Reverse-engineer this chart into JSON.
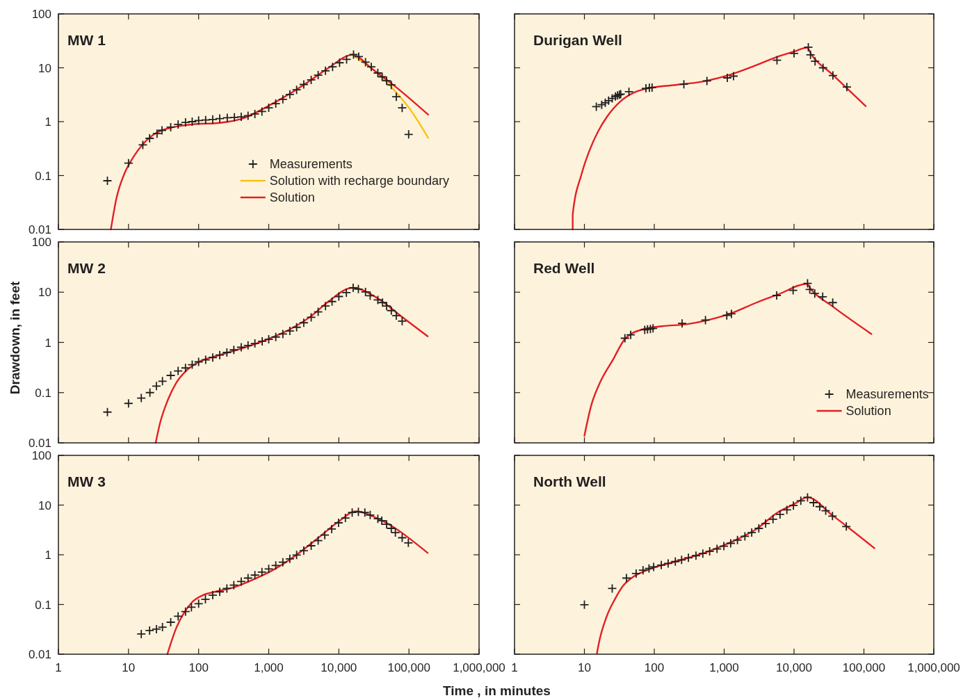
{
  "chart_data": [
    {
      "type": "scatter",
      "title": "MW 1",
      "xlim": [
        1,
        1000000
      ],
      "ylim": [
        0.01,
        100
      ],
      "log": "xy",
      "legend": "bottom right",
      "tick_labels": "y",
      "xticks": [
        {
          "value": 1,
          "label": null
        },
        {
          "value": 10,
          "label": null
        },
        {
          "value": 100,
          "label": null
        },
        {
          "value": 1000,
          "label": null
        },
        {
          "value": 10000,
          "label": null
        },
        {
          "value": 100000,
          "label": null
        },
        {
          "value": 1000000,
          "label": null
        }
      ],
      "yticks": [
        0.01,
        0.1,
        1,
        10,
        100
      ],
      "series": [
        {
          "name": "Measurements",
          "marker": "cross",
          "color": "#231f20",
          "x": [
            5,
            10,
            16,
            20,
            25.5,
            30,
            40,
            51,
            65,
            81,
            100,
            126,
            159,
            200,
            256,
            324,
            405,
            507,
            635,
            800,
            1000,
            1260,
            1590,
            2000,
            2500,
            3160,
            4030,
            5070,
            6450,
            8140,
            10240,
            12900,
            16200,
            19200,
            24000,
            29000,
            36000,
            41500,
            48000,
            56000,
            66000,
            80000,
            99000
          ],
          "values": [
            0.08,
            0.17,
            0.37,
            0.49,
            0.6,
            0.69,
            0.79,
            0.89,
            0.97,
            1.0,
            1.05,
            1.07,
            1.1,
            1.14,
            1.18,
            1.2,
            1.23,
            1.29,
            1.39,
            1.54,
            1.81,
            2.16,
            2.6,
            3.2,
            3.9,
            4.9,
            5.95,
            7.3,
            8.8,
            10.4,
            12.4,
            14.3,
            17.6,
            16.1,
            12.7,
            10.4,
            8.0,
            6.8,
            5.75,
            4.8,
            2.9,
            1.8,
            0.58
          ]
        },
        {
          "name": "Solution with recharge boundary",
          "type": "line",
          "color": "#fcc00d",
          "x": [
            15700,
            35000,
            61000,
            102000,
            188000
          ],
          "values": [
            17.4,
            8.0,
            3.9,
            1.75,
            0.5
          ]
        },
        {
          "name": "Solution",
          "type": "line",
          "color": "#e41e26",
          "x": [
            5.6,
            6.7,
            8.7,
            11.9,
            16,
            25.5,
            40,
            81,
            200,
            405,
            1000,
            2000,
            4000,
            7000,
            15700,
            30000,
            61000,
            188000
          ],
          "values": [
            0.01,
            0.037,
            0.107,
            0.227,
            0.38,
            0.63,
            0.77,
            0.89,
            0.95,
            1.12,
            1.97,
            3.3,
            5.95,
            9.8,
            17.4,
            9.5,
            4.7,
            1.35
          ]
        }
      ]
    },
    {
      "type": "scatter",
      "title": "Durigan Well",
      "xlim": [
        1,
        1000000
      ],
      "ylim": [
        0.01,
        100
      ],
      "log": "xy",
      "tick_labels": false,
      "xticks": [
        {
          "value": 1,
          "label": null
        },
        {
          "value": 10,
          "label": null
        },
        {
          "value": 100,
          "label": null
        },
        {
          "value": 1000,
          "label": null
        },
        {
          "value": 10000,
          "label": null
        },
        {
          "value": 100000,
          "label": null
        },
        {
          "value": 1000000,
          "label": null
        }
      ],
      "yticks": [
        {
          "value": 0.01,
          "label": null
        },
        {
          "value": 0.1,
          "label": null
        },
        {
          "value": 1,
          "label": null
        },
        {
          "value": 10,
          "label": null
        },
        {
          "value": 100,
          "label": null
        }
      ],
      "series": [
        {
          "marker": "cross",
          "color": "#231f20",
          "x": [
            14.8,
            17.7,
            19.9,
            22.2,
            25,
            27.8,
            29.8,
            31.7,
            33.1,
            43.4,
            76,
            85,
            93,
            265,
            567,
            1110,
            1360,
            5700,
            10000,
            16000,
            17200,
            20000,
            26000,
            36000,
            57000
          ],
          "values": [
            1.9,
            2.06,
            2.24,
            2.45,
            2.7,
            2.93,
            3.06,
            3.17,
            3.24,
            3.6,
            4.15,
            4.25,
            4.3,
            4.95,
            5.7,
            6.5,
            7.0,
            13.8,
            18.5,
            24.1,
            17.4,
            13.2,
            10.0,
            7.2,
            4.4
          ]
        },
        {
          "type": "line",
          "color": "#e41e26",
          "x": [
            6.8,
            6.8,
            9.1,
            11.8,
            15.9,
            21.2,
            33,
            52,
            81,
            200,
            490,
            1200,
            2900,
            5700,
            10000,
            15400,
            17600,
            35000,
            106000
          ],
          "values": [
            0.01,
            0.0187,
            0.106,
            0.29,
            0.68,
            1.25,
            2.4,
            3.5,
            4.15,
            4.8,
            5.55,
            7.4,
            11.2,
            15.9,
            20,
            23.7,
            17.8,
            7.6,
            1.94
          ]
        }
      ]
    },
    {
      "type": "scatter",
      "title": "MW 2",
      "ylabel": "Drawdown, in feet",
      "xlim": [
        1,
        1000000
      ],
      "ylim": [
        0.01,
        100
      ],
      "log": "xy",
      "tick_labels": "y",
      "xticks": [
        {
          "value": 1,
          "label": null
        },
        {
          "value": 10,
          "label": null
        },
        {
          "value": 100,
          "label": null
        },
        {
          "value": 1000,
          "label": null
        },
        {
          "value": 10000,
          "label": null
        },
        {
          "value": 100000,
          "label": null
        },
        {
          "value": 1000000,
          "label": null
        }
      ],
      "yticks": [
        0.01,
        0.1,
        1,
        10,
        100
      ],
      "series": [
        {
          "marker": "cross",
          "color": "#231f20",
          "x": [
            5,
            10,
            15.2,
            20.2,
            25,
            30.5,
            40,
            51,
            65,
            81,
            100,
            126,
            159,
            200,
            253,
            318,
            405,
            507,
            635,
            807,
            1000,
            1260,
            1590,
            2000,
            2500,
            3160,
            4030,
            5070,
            6450,
            8000,
            10000,
            12800,
            16000,
            19000,
            24000,
            28000,
            36000,
            42000,
            48000,
            56000,
            66000,
            80000
          ],
          "values": [
            0.041,
            0.061,
            0.078,
            0.1,
            0.135,
            0.169,
            0.22,
            0.27,
            0.31,
            0.36,
            0.41,
            0.45,
            0.5,
            0.56,
            0.63,
            0.71,
            0.8,
            0.87,
            0.95,
            1.05,
            1.15,
            1.28,
            1.47,
            1.69,
            2.0,
            2.46,
            3.16,
            4.06,
            5.3,
            6.5,
            8.2,
            9.8,
            12.2,
            11.5,
            10.1,
            8.5,
            7.0,
            6.2,
            5.3,
            4.3,
            3.4,
            2.65
          ]
        },
        {
          "type": "line",
          "color": "#e41e26",
          "x": [
            24.4,
            28,
            36.5,
            47.5,
            68,
            98,
            200,
            480,
            1000,
            2000,
            4100,
            7000,
            15700,
            35000,
            80000,
            185000
          ],
          "values": [
            0.01,
            0.024,
            0.072,
            0.153,
            0.28,
            0.4,
            0.56,
            0.81,
            1.18,
            1.82,
            3.4,
            6.4,
            12.2,
            7.7,
            3.2,
            1.32
          ]
        }
      ]
    },
    {
      "type": "scatter",
      "title": "Red Well",
      "xlim": [
        1,
        1000000
      ],
      "ylim": [
        0.01,
        100
      ],
      "log": "xy",
      "legend": "bottom right",
      "tick_labels": false,
      "xticks": [
        {
          "value": 1,
          "label": null
        },
        {
          "value": 10,
          "label": null
        },
        {
          "value": 100,
          "label": null
        },
        {
          "value": 1000,
          "label": null
        },
        {
          "value": 10000,
          "label": null
        },
        {
          "value": 100000,
          "label": null
        },
        {
          "value": 1000000,
          "label": null
        }
      ],
      "yticks": [
        {
          "value": 0.01,
          "label": null
        },
        {
          "value": 0.1,
          "label": null
        },
        {
          "value": 1,
          "label": null
        },
        {
          "value": 10,
          "label": null
        },
        {
          "value": 100,
          "label": null
        }
      ],
      "series": [
        {
          "name": "Measurements",
          "marker": "cross",
          "color": "#231f20",
          "x": [
            38,
            46,
            73,
            80,
            88,
            96,
            250,
            540,
            1090,
            1270,
            5650,
            9700,
            15600,
            16800,
            19800,
            25700,
            35800
          ],
          "values": [
            1.21,
            1.41,
            1.78,
            1.82,
            1.85,
            1.9,
            2.39,
            2.78,
            3.45,
            3.7,
            8.6,
            10.9,
            15.0,
            11.3,
            9.4,
            8.1,
            6.2
          ]
        },
        {
          "name": "Solution",
          "type": "line",
          "color": "#e41e26",
          "x": [
            10,
            12.4,
            16.3,
            25.8,
            38,
            68,
            129,
            290,
            590,
            1200,
            2900,
            5900,
            15300,
            17500,
            35000,
            128000
          ],
          "values": [
            0.0138,
            0.053,
            0.147,
            0.46,
            1.17,
            1.82,
            2.1,
            2.3,
            2.78,
            3.7,
            6.2,
            9.0,
            14.6,
            11.4,
            5.3,
            1.47
          ]
        }
      ]
    },
    {
      "type": "scatter",
      "title": "MW 3",
      "xlabel": "Time , in minutes",
      "xlim": [
        1,
        1000000
      ],
      "ylim": [
        0.01,
        100
      ],
      "log": "xy",
      "xticks": [
        1,
        10,
        100,
        {
          "value": 1000,
          "label": "1,000"
        },
        {
          "value": 10000,
          "label": "10,000"
        },
        {
          "value": 100000,
          "label": "100,000"
        },
        {
          "value": 1000000,
          "label": "1,000,000"
        }
      ],
      "yticks": [
        0.01,
        0.1,
        1,
        10,
        100
      ],
      "series": [
        {
          "marker": "cross",
          "color": "#231f20",
          "x": [
            15.2,
            20,
            25,
            30.5,
            40,
            51,
            65,
            79,
            100,
            125,
            159,
            200,
            253,
            318,
            405,
            507,
            635,
            800,
            1000,
            1260,
            1590,
            2000,
            2500,
            3160,
            4030,
            5070,
            6300,
            7900,
            9900,
            12400,
            15500,
            19000,
            23500,
            28000,
            36000,
            41000,
            48000,
            56000,
            64000,
            80000,
            98000
          ],
          "values": [
            0.0255,
            0.03,
            0.032,
            0.035,
            0.044,
            0.058,
            0.072,
            0.088,
            0.104,
            0.127,
            0.154,
            0.18,
            0.21,
            0.245,
            0.29,
            0.34,
            0.39,
            0.45,
            0.52,
            0.61,
            0.71,
            0.83,
            0.99,
            1.21,
            1.52,
            1.93,
            2.49,
            3.3,
            4.4,
            5.5,
            7.1,
            7.3,
            7.1,
            6.3,
            5.3,
            4.86,
            4.1,
            3.4,
            2.8,
            2.2,
            1.74
          ]
        },
        {
          "type": "line",
          "color": "#e41e26",
          "x": [
            35.8,
            47.5,
            62,
            81,
            115,
            170,
            330,
            580,
            1200,
            2400,
            4900,
            10000,
            17500,
            35000,
            185000
          ],
          "values": [
            0.01,
            0.0325,
            0.068,
            0.112,
            0.154,
            0.18,
            0.225,
            0.31,
            0.51,
            0.96,
            2.1,
            4.7,
            7.5,
            5.45,
            1.09
          ]
        }
      ]
    },
    {
      "type": "scatter",
      "title": "North Well",
      "xlim": [
        1,
        1000000
      ],
      "ylim": [
        0.01,
        100
      ],
      "log": "xy",
      "tick_labels": "x",
      "xticks": [
        1,
        10,
        100,
        {
          "value": 1000,
          "label": "1,000"
        },
        {
          "value": 10000,
          "label": "10,000"
        },
        {
          "value": 100000,
          "label": "100,000"
        },
        {
          "value": 1000000,
          "label": "1,000,000"
        }
      ],
      "yticks": [
        {
          "value": 0.01,
          "label": null
        },
        {
          "value": 0.1,
          "label": null
        },
        {
          "value": 1,
          "label": null
        },
        {
          "value": 10,
          "label": null
        },
        {
          "value": 100,
          "label": null
        }
      ],
      "series": [
        {
          "marker": "cross",
          "color": "#231f20",
          "x": [
            10,
            25,
            40,
            55,
            69,
            84,
            98,
            126,
            158,
            200,
            246,
            308,
            395,
            495,
            620,
            790,
            990,
            1240,
            1550,
            1980,
            2480,
            3130,
            3920,
            5000,
            6300,
            7900,
            9800,
            12500,
            15600,
            19000,
            23300,
            28400,
            35500,
            56000
          ],
          "values": [
            0.099,
            0.21,
            0.34,
            0.42,
            0.49,
            0.53,
            0.57,
            0.62,
            0.67,
            0.73,
            0.79,
            0.87,
            0.96,
            1.06,
            1.17,
            1.31,
            1.49,
            1.7,
            1.98,
            2.35,
            2.8,
            3.4,
            4.25,
            5.2,
            6.5,
            8.0,
            9.8,
            12.2,
            14.3,
            11.2,
            9.3,
            7.7,
            6.0,
            3.7
          ]
        },
        {
          "type": "line",
          "color": "#e41e26",
          "x": [
            15.1,
            16,
            20.7,
            27.5,
            36,
            47,
            81,
            200,
            490,
            1200,
            2900,
            5900,
            10100,
            15600,
            35500,
            141000
          ],
          "values": [
            0.0103,
            0.016,
            0.056,
            0.13,
            0.24,
            0.34,
            0.5,
            0.73,
            1.06,
            1.75,
            3.3,
            7.2,
            10.5,
            14.3,
            6.2,
            1.36
          ]
        }
      ]
    }
  ]
}
